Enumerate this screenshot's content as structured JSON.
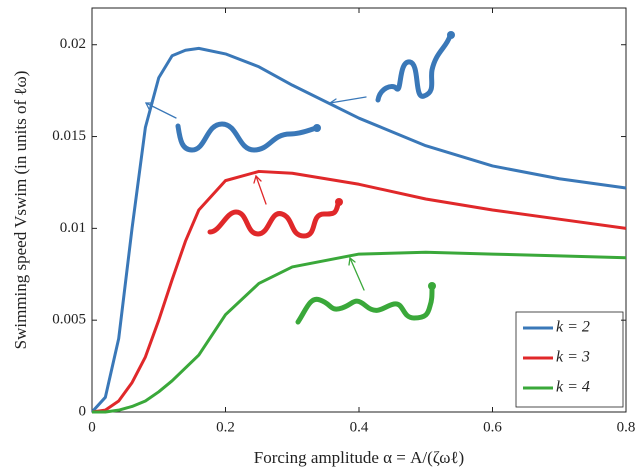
{
  "chart_data": {
    "type": "line",
    "xlabel": "Forcing amplitude α = A/(ζωℓ)",
    "ylabel": "Swimming speed Vswim (in units of ℓω)",
    "x": [
      0,
      0.02,
      0.04,
      0.06,
      0.08,
      0.1,
      0.12,
      0.14,
      0.16,
      0.2,
      0.25,
      0.3,
      0.4,
      0.5,
      0.6,
      0.7,
      0.8
    ],
    "series": [
      {
        "name": "k = 2",
        "color": "#3a78b8",
        "values": [
          0,
          0.0008,
          0.004,
          0.01,
          0.0155,
          0.0182,
          0.0194,
          0.0197,
          0.0198,
          0.0195,
          0.0188,
          0.0178,
          0.016,
          0.0145,
          0.0134,
          0.0127,
          0.0122
        ]
      },
      {
        "name": "k = 3",
        "color": "#e0282a",
        "values": [
          0,
          0.0001,
          0.0006,
          0.0016,
          0.003,
          0.005,
          0.0072,
          0.0093,
          0.011,
          0.0126,
          0.0131,
          0.013,
          0.0124,
          0.0116,
          0.011,
          0.0105,
          0.01
        ]
      },
      {
        "name": "k = 4",
        "color": "#3aa83a",
        "values": [
          0,
          0,
          0.0001,
          0.0003,
          0.0006,
          0.0011,
          0.0017,
          0.0024,
          0.0031,
          0.0053,
          0.007,
          0.0079,
          0.0086,
          0.0087,
          0.0086,
          0.0085,
          0.0084
        ]
      }
    ],
    "xlim": [
      0,
      0.8
    ],
    "xticks": [
      0,
      0.2,
      0.4,
      0.6,
      0.8
    ],
    "ylim": [
      0,
      0.022
    ],
    "yticks": [
      0,
      0.005,
      0.01,
      0.015,
      0.02
    ],
    "legend": "lower right"
  }
}
